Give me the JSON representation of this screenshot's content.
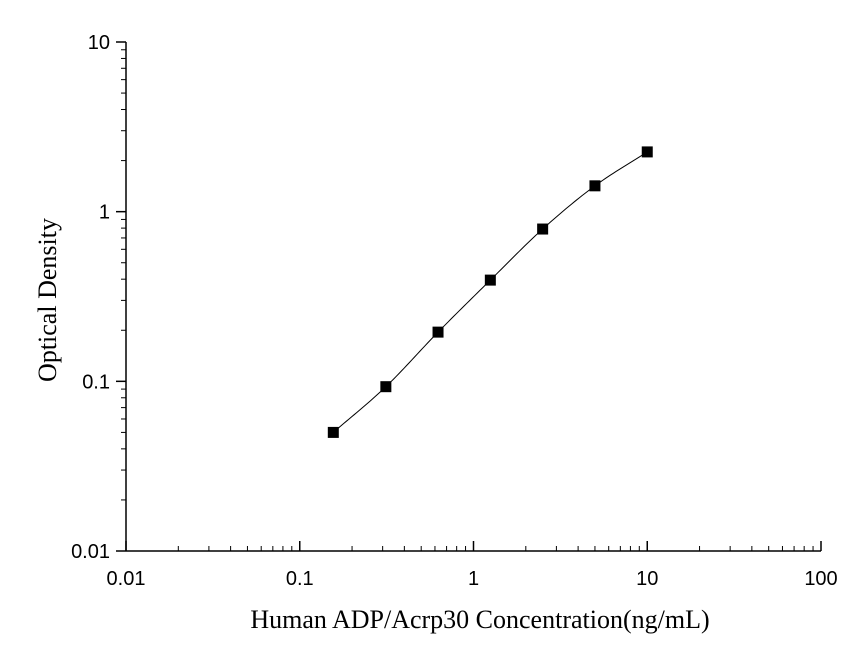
{
  "chart_data": {
    "type": "scatter",
    "title": "",
    "xlabel": "Human ADP/Acrp30 Concentration(ng/mL)",
    "ylabel": "Optical Density",
    "x_scale": "log",
    "y_scale": "log",
    "xlim": [
      0.01,
      100
    ],
    "ylim": [
      0.01,
      10
    ],
    "x_ticks": [
      "0.01",
      "0.1",
      "1",
      "10",
      "100"
    ],
    "y_ticks": [
      "0.01",
      "0.1",
      "1",
      "10"
    ],
    "grid": false,
    "legend": "none",
    "marker_color": "#000000",
    "series": [
      {
        "x": [
          0.156,
          0.313,
          0.625,
          1.25,
          2.5,
          5,
          10
        ],
        "y": [
          0.05,
          0.093,
          0.195,
          0.395,
          0.79,
          1.42,
          2.25
        ],
        "marker": "square",
        "fit_curve": true
      }
    ]
  }
}
